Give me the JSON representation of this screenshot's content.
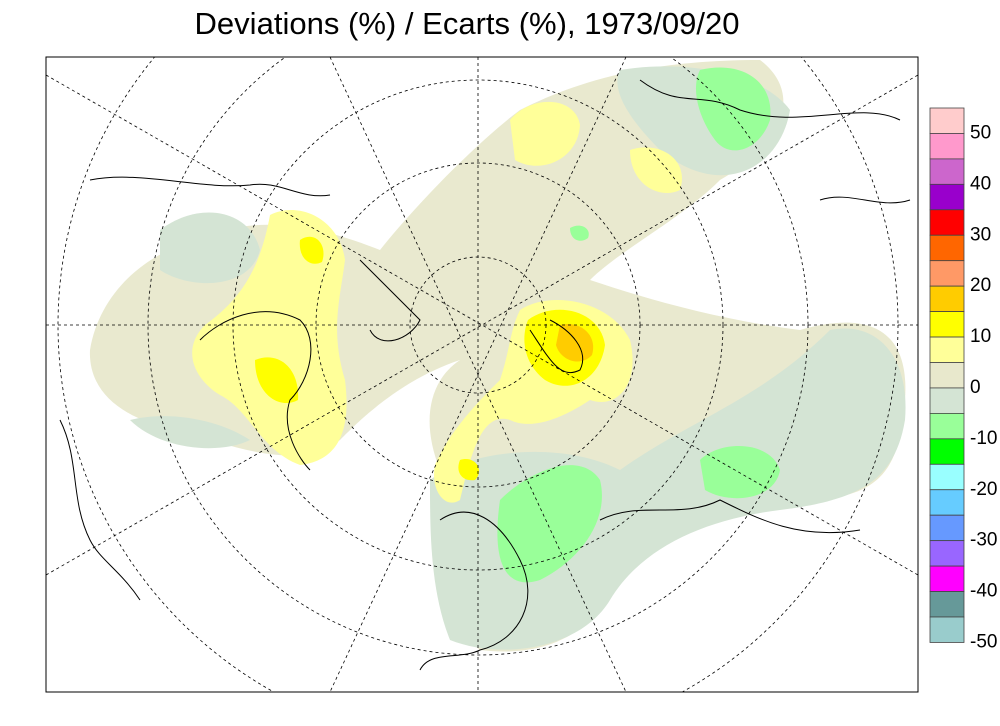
{
  "title": "Deviations (%) / Ecarts (%), 1973/09/20",
  "colorbar": {
    "colors": [
      "#ffcccc",
      "#ff99cc",
      "#cc66cc",
      "#9900cc",
      "#ff0000",
      "#ff6600",
      "#ff9966",
      "#ffcc00",
      "#ffff00",
      "#ffff99",
      "#e8e8cc",
      "#d4e4d4",
      "#99ff99",
      "#00ff00",
      "#99ffff",
      "#66ccff",
      "#6699ff",
      "#9966ff",
      "#ff00ff",
      "#669999",
      "#99cccc"
    ],
    "labels": [
      50,
      40,
      30,
      20,
      10,
      0,
      -10,
      -20,
      -30,
      -40,
      -50
    ]
  }
}
